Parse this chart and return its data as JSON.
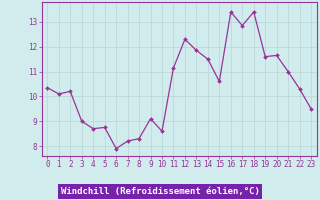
{
  "x": [
    0,
    1,
    2,
    3,
    4,
    5,
    6,
    7,
    8,
    9,
    10,
    11,
    12,
    13,
    14,
    15,
    16,
    17,
    18,
    19,
    20,
    21,
    22,
    23
  ],
  "y": [
    10.35,
    10.1,
    10.2,
    9.0,
    8.7,
    8.75,
    7.9,
    8.2,
    8.3,
    9.1,
    8.6,
    11.15,
    12.3,
    11.85,
    11.5,
    10.6,
    13.4,
    12.85,
    13.4,
    11.6,
    11.65,
    11.0,
    10.3,
    9.5
  ],
  "line_color": "#993399",
  "marker": "D",
  "marker_size": 2.0,
  "bg_color": "#d0ecec",
  "grid_color": "#b8d4d4",
  "xlabel": "Windchill (Refroidissement éolien,°C)",
  "xlabel_bg": "#7722aa",
  "xlabel_color": "#ffffff",
  "ylabel_ticks": [
    8,
    9,
    10,
    11,
    12,
    13
  ],
  "xlim": [
    -0.5,
    23.5
  ],
  "ylim": [
    7.6,
    13.8
  ],
  "xticks": [
    0,
    1,
    2,
    3,
    4,
    5,
    6,
    7,
    8,
    9,
    10,
    11,
    12,
    13,
    14,
    15,
    16,
    17,
    18,
    19,
    20,
    21,
    22,
    23
  ],
  "tick_fontsize": 5.5,
  "xlabel_fontsize": 6.5,
  "line_width": 0.9
}
